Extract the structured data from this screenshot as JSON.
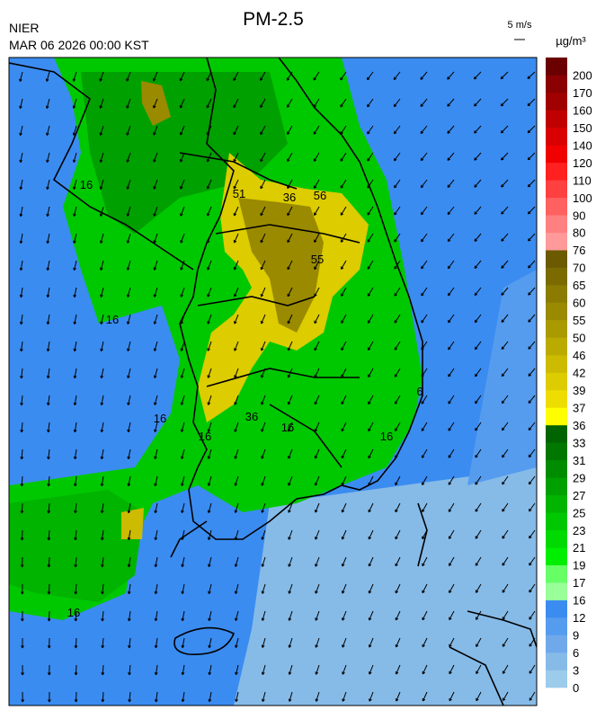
{
  "header": {
    "title": "PM-2.5",
    "agency": "NIER",
    "datetime": "MAR 06 2026 00:00 KST",
    "wind_scale": "5 m/s"
  },
  "map": {
    "contour_labels": [
      16,
      16,
      16,
      16,
      16,
      36,
      51,
      56,
      55,
      36,
      16,
      6,
      16
    ]
  },
  "legend": {
    "unit": "µg/m³",
    "ticks": [
      0,
      3,
      6,
      9,
      12,
      16,
      17,
      19,
      21,
      23,
      25,
      27,
      29,
      31,
      33,
      36,
      37,
      39,
      42,
      46,
      50,
      55,
      60,
      65,
      70,
      76,
      80,
      90,
      100,
      110,
      120,
      140,
      150,
      160,
      170,
      200
    ],
    "colors": [
      "#9ccbeb",
      "#86bbe8",
      "#6fa9ea",
      "#559cef",
      "#3b8cf0",
      "#99ff99",
      "#66ff66",
      "#00ee00",
      "#00da00",
      "#00c800",
      "#00b400",
      "#00a000",
      "#008c00",
      "#007800",
      "#006400",
      "#ffff00",
      "#eedd00",
      "#dccc00",
      "#ccbb00",
      "#bbaa00",
      "#aa9a00",
      "#9a8a00",
      "#8b7b00",
      "#7a6a00",
      "#6b5a00",
      "#ff9a9a",
      "#ff8080",
      "#ff6060",
      "#ff4040",
      "#ff2020",
      "#f00000",
      "#d80000",
      "#c00000",
      "#a00000",
      "#8b0000",
      "#6b0000"
    ]
  }
}
